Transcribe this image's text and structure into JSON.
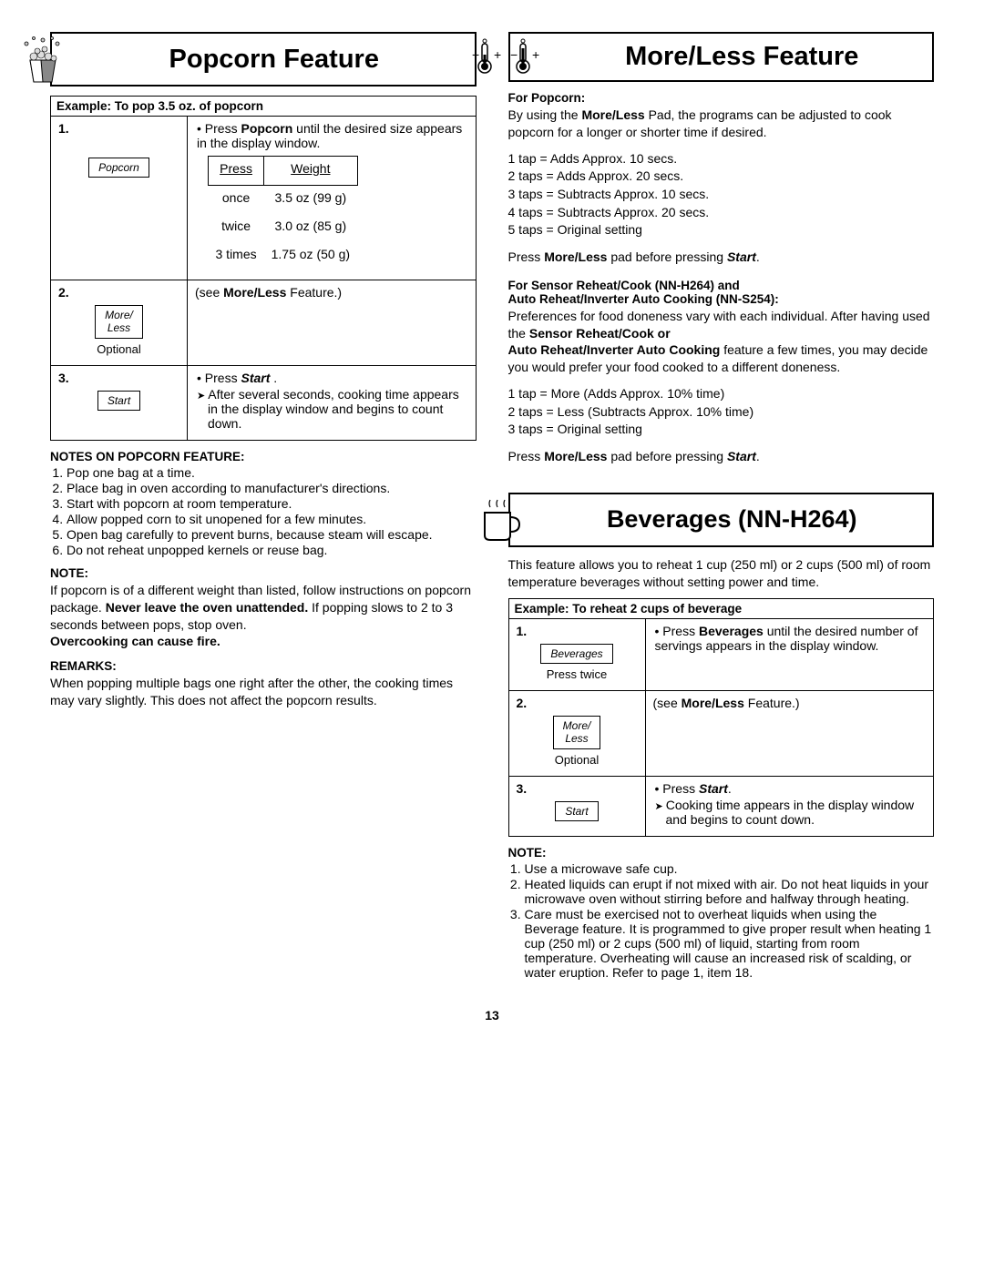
{
  "page_number": "13",
  "popcorn": {
    "title": "Popcorn Feature",
    "example_header": "Example: To pop 3.5 oz. of popcorn",
    "step1": {
      "num": "1.",
      "button": "Popcorn",
      "instr_a": "Press ",
      "instr_b": "Popcorn",
      "instr_c": " until the desired size appears in the display window.",
      "th_press": "Press",
      "th_weight": "Weight",
      "r1a": "once",
      "r1b": "3.5 oz (99 g)",
      "r2a": "twice",
      "r2b": "3.0 oz (85 g)",
      "r3a": "3 times",
      "r3b": "1.75 oz (50 g)"
    },
    "step2": {
      "num": "2.",
      "button1": "More/",
      "button2": "Less",
      "sub": "Optional",
      "instr_a": "(see ",
      "instr_b": "More/Less",
      "instr_c": " Feature.)"
    },
    "step3": {
      "num": "3.",
      "button": "Start",
      "instr_a": "Press ",
      "instr_b": "Start",
      "instr_c": " .",
      "arrow": "After several seconds, cooking time appears in the display window and begins to count down."
    },
    "notes_heading": "NOTES ON POPCORN FEATURE:",
    "notes": [
      "Pop one bag at a time.",
      "Place bag in oven according to manufacturer's directions.",
      "Start with popcorn at room temperature.",
      "Allow popped corn to sit unopened for a few minutes.",
      "Open bag carefully to prevent burns, because steam will escape.",
      "Do not reheat unpopped kernels or reuse bag."
    ],
    "note_heading": "NOTE:",
    "note_text_a": "If popcorn is of a different weight than listed, follow instructions on popcorn package. ",
    "note_text_b": "Never leave the oven unattended.",
    "note_text_c": " If popping slows to 2 to 3 seconds between pops, stop oven. ",
    "note_text_d": "Overcooking can cause fire.",
    "remarks_heading": "REMARKS:",
    "remarks_text": "When popping multiple bags one right after the other, the cooking times may vary slightly. This does not affect the popcorn results."
  },
  "moreless": {
    "title": "More/Less Feature",
    "for_popcorn": "For Popcorn:",
    "intro_a": "By using the ",
    "intro_b": "More/Less",
    "intro_c": " Pad, the programs can be adjusted to cook popcorn for a longer or shorter time if desired.",
    "taps": [
      "1 tap = Adds Approx. 10 secs.",
      "2 taps = Adds Approx. 20 secs.",
      "3 taps = Subtracts Approx. 10 secs.",
      "4 taps = Subtracts Approx. 20 secs.",
      "5 taps = Original setting"
    ],
    "press_a": "Press ",
    "press_b": "More/Less",
    "press_c": " pad before pressing ",
    "press_d": "Start",
    "press_e": ".",
    "sensor_h1": "For Sensor Reheat/Cook (NN-H264) and",
    "sensor_h2": "Auto Reheat/Inverter Auto Cooking (NN-S254):",
    "sensor_p1_a": "Preferences for food doneness vary with each individual. After having used the ",
    "sensor_p1_b": "Sensor Reheat/Cook or",
    "sensor_p2_a": "Auto Reheat/Inverter Auto Cooking",
    "sensor_p2_b": " feature a few times, you may decide you would prefer your food cooked to a different doneness.",
    "taps2": [
      "1 tap = More (Adds Approx. 10% time)",
      "2 taps = Less (Subtracts Approx. 10% time)",
      "3 taps = Original setting"
    ]
  },
  "beverages": {
    "title": "Beverages (NN-H264)",
    "intro": "This feature allows you to reheat 1 cup (250 ml) or 2 cups (500 ml) of room temperature beverages without setting power and time.",
    "example_header": "Example: To reheat 2 cups of beverage",
    "step1": {
      "num": "1.",
      "button": "Beverages",
      "sub": "Press twice",
      "instr_a": "Press ",
      "instr_b": "Beverages",
      "instr_c": " until the desired number of servings appears in the display window."
    },
    "step2": {
      "num": "2.",
      "button1": "More/",
      "button2": "Less",
      "sub": "Optional",
      "instr_a": "(see ",
      "instr_b": "More/Less",
      "instr_c": " Feature.)"
    },
    "step3": {
      "num": "3.",
      "button": "Start",
      "instr_a": "Press ",
      "instr_b": "Start",
      "instr_c": ".",
      "arrow": "Cooking time appears in the display window and begins to count down."
    },
    "note_heading": "NOTE:",
    "notes": [
      "Use a microwave safe cup.",
      "Heated liquids can erupt if not mixed with air. Do not heat liquids in your microwave oven without stirring before and halfway through heating.",
      "Care must be exercised not to overheat liquids when using the Beverage feature. It is programmed to give proper result when heating 1 cup (250 ml) or 2 cups (500 ml) of liquid, starting from room temperature. Overheating will cause an increased risk of scalding, or water eruption. Refer to page 1, item 18."
    ]
  }
}
